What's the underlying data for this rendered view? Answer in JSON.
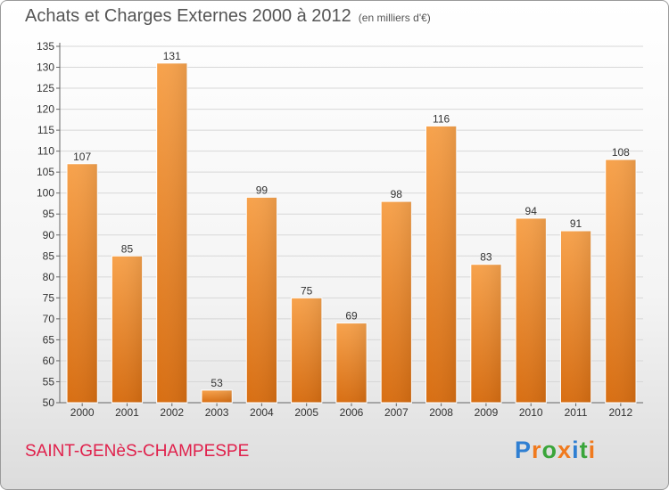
{
  "header": {
    "title": "Achats et Charges Externes 2000 à 2012",
    "subtitle": "(en milliers d'€)"
  },
  "footer": {
    "commune": "SAINT-GENèS-CHAMPESPE",
    "logo_letters": [
      "P",
      "r",
      "o",
      "x",
      "i",
      "t",
      "i"
    ],
    "logo_colors": [
      "#2f7fd2",
      "#f07a1e",
      "#3aa53a",
      "#f07a1e",
      "#2f7fd2",
      "#3aa53a",
      "#f07a1e"
    ]
  },
  "chart_data": {
    "type": "bar",
    "title": "Achats et Charges Externes 2000 à 2012",
    "subtitle": "(en milliers d'€)",
    "categories": [
      "2000",
      "2001",
      "2002",
      "2003",
      "2004",
      "2005",
      "2006",
      "2007",
      "2008",
      "2009",
      "2010",
      "2011",
      "2012"
    ],
    "values": [
      107,
      85,
      131,
      53,
      99,
      75,
      69,
      98,
      116,
      83,
      94,
      91,
      108
    ],
    "value_labels": [
      "107",
      "85",
      "131",
      "53",
      "99",
      "75",
      "69",
      "98",
      "116",
      "83",
      "94",
      "91",
      "108"
    ],
    "yticks": [
      "50",
      "55",
      "60",
      "65",
      "70",
      "75",
      "80",
      "85",
      "90",
      "95",
      "100",
      "105",
      "110",
      "115",
      "120",
      "125",
      "130",
      "135"
    ],
    "ylim": [
      50,
      135
    ],
    "grid": true,
    "bar_color": "#f0902a",
    "xlabel": "",
    "ylabel": ""
  }
}
